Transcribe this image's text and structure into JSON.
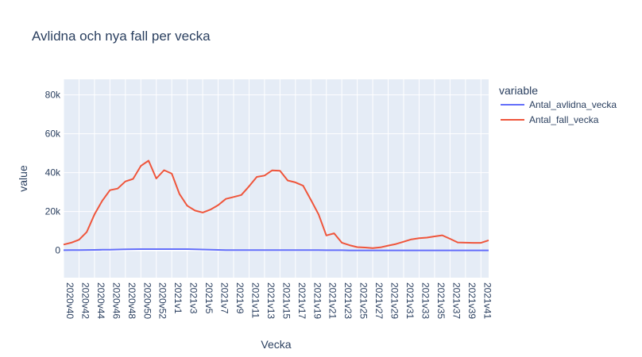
{
  "chart_data": {
    "type": "line",
    "title": "Avlidna och nya fall per vecka",
    "xlabel": "Vecka",
    "ylabel": "value",
    "legend_title": "variable",
    "legend_position": "right",
    "grid": true,
    "ylim": [
      -14000,
      88000
    ],
    "y_ticks": [
      0,
      20000,
      40000,
      60000,
      80000
    ],
    "y_tick_labels": [
      "0",
      "20k",
      "40k",
      "60k",
      "80k"
    ],
    "x": [
      "2020v40",
      "2020v41",
      "2020v42",
      "2020v43",
      "2020v44",
      "2020v45",
      "2020v46",
      "2020v47",
      "2020v48",
      "2020v49",
      "2020v50",
      "2020v51",
      "2020v52",
      "2020v53",
      "2021v1",
      "2021v2",
      "2021v3",
      "2021v4",
      "2021v5",
      "2021v6",
      "2021v7",
      "2021v8",
      "2021v9",
      "2021v10",
      "2021v11",
      "2021v12",
      "2021v13",
      "2021v14",
      "2021v15",
      "2021v16",
      "2021v17",
      "2021v18",
      "2021v19",
      "2021v20",
      "2021v21",
      "2021v22",
      "2021v23",
      "2021v24",
      "2021v25",
      "2021v26",
      "2021v27",
      "2021v28",
      "2021v29",
      "2021v30",
      "2021v31",
      "2021v32",
      "2021v33",
      "2021v34",
      "2021v35",
      "2021v36",
      "2021v37",
      "2021v38",
      "2021v39",
      "2021v40",
      "2021v41",
      "2021v42"
    ],
    "x_tick_labels": [
      "2020v40",
      "2020v42",
      "2020v44",
      "2020v46",
      "2020v48",
      "2020v50",
      "2020v52",
      "2021v1",
      "2021v3",
      "2021v5",
      "2021v7",
      "2021v9",
      "2021v11",
      "2021v13",
      "2021v15",
      "2021v17",
      "2021v19",
      "2021v21",
      "2021v23",
      "2021v25",
      "2021v27",
      "2021v29",
      "2021v31",
      "2021v33",
      "2021v35",
      "2021v37",
      "2021v39",
      "2021v41"
    ],
    "series": [
      {
        "name": "Antal_avlidna_vecka",
        "color": "#636efa",
        "values": [
          100,
          150,
          200,
          250,
          300,
          350,
          400,
          500,
          600,
          650,
          700,
          700,
          700,
          700,
          700,
          700,
          700,
          600,
          500,
          400,
          300,
          200,
          150,
          150,
          150,
          150,
          150,
          150,
          150,
          150,
          150,
          150,
          150,
          150,
          100,
          100,
          100,
          50,
          50,
          50,
          50,
          50,
          50,
          50,
          50,
          50,
          50,
          50,
          50,
          50,
          50,
          50,
          50,
          50,
          50,
          50
        ]
      },
      {
        "name": "Antal_fall_vecka",
        "color": "#ef553b",
        "values": [
          3000,
          4000,
          5500,
          9500,
          18500,
          25500,
          31000,
          31800,
          35500,
          36800,
          43500,
          46200,
          37000,
          41300,
          39500,
          29000,
          23000,
          20500,
          19500,
          21000,
          23300,
          26500,
          27500,
          28500,
          33000,
          37800,
          38500,
          41200,
          41000,
          36000,
          35000,
          33300,
          26000,
          18500,
          7700,
          8800,
          4000,
          2700,
          1700,
          1500,
          1200,
          1600,
          2500,
          3300,
          4500,
          5700,
          6300,
          6600,
          7200,
          7800,
          6000,
          4100,
          4000,
          3900,
          3900,
          5200
        ]
      }
    ]
  }
}
